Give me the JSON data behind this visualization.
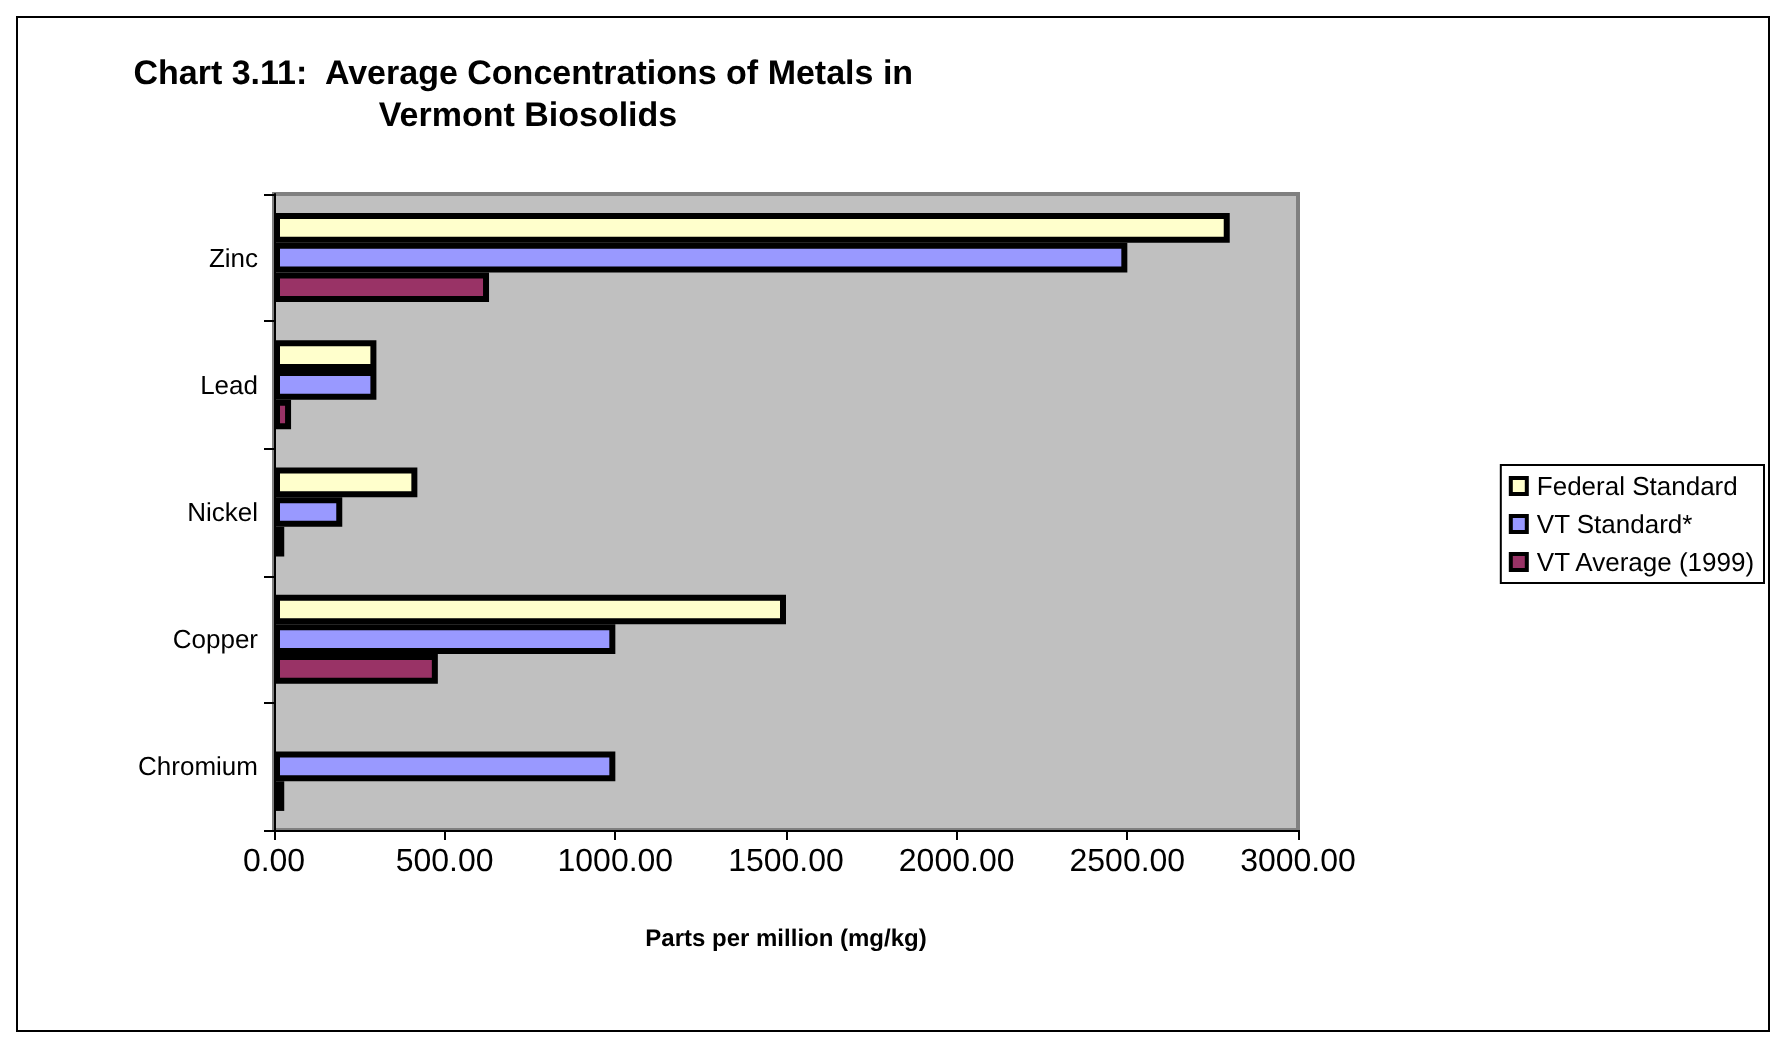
{
  "chart_data": {
    "type": "bar",
    "orientation": "horizontal",
    "title": "Chart 3.11:  Average Concentrations of Metals in Vermont Biosolids",
    "xlabel": "Parts per million (mg/kg)",
    "categories": [
      "Zinc",
      "Lead",
      "Nickel",
      "Copper",
      "Chromium"
    ],
    "series": [
      {
        "name": "Federal Standard",
        "color": "#ffffcc",
        "values": [
          2800,
          300,
          420,
          1500,
          null
        ]
      },
      {
        "name": "VT Standard*",
        "color": "#9999ff",
        "values": [
          2500,
          300,
          200,
          1000,
          1000
        ]
      },
      {
        "name": "VT Average (1999)",
        "color": "#993366",
        "values": [
          630,
          50,
          30,
          480,
          30
        ]
      }
    ],
    "xlim": [
      0,
      3000
    ],
    "xticks": [
      {
        "value": 0,
        "label": "0.00"
      },
      {
        "value": 500,
        "label": "500.00"
      },
      {
        "value": 1000,
        "label": "1000.00"
      },
      {
        "value": 1500,
        "label": "1500.00"
      },
      {
        "value": 2000,
        "label": "2000.00"
      },
      {
        "value": 2500,
        "label": "2500.00"
      },
      {
        "value": 3000,
        "label": "3000.00"
      }
    ],
    "grid": false,
    "legend": "right"
  }
}
